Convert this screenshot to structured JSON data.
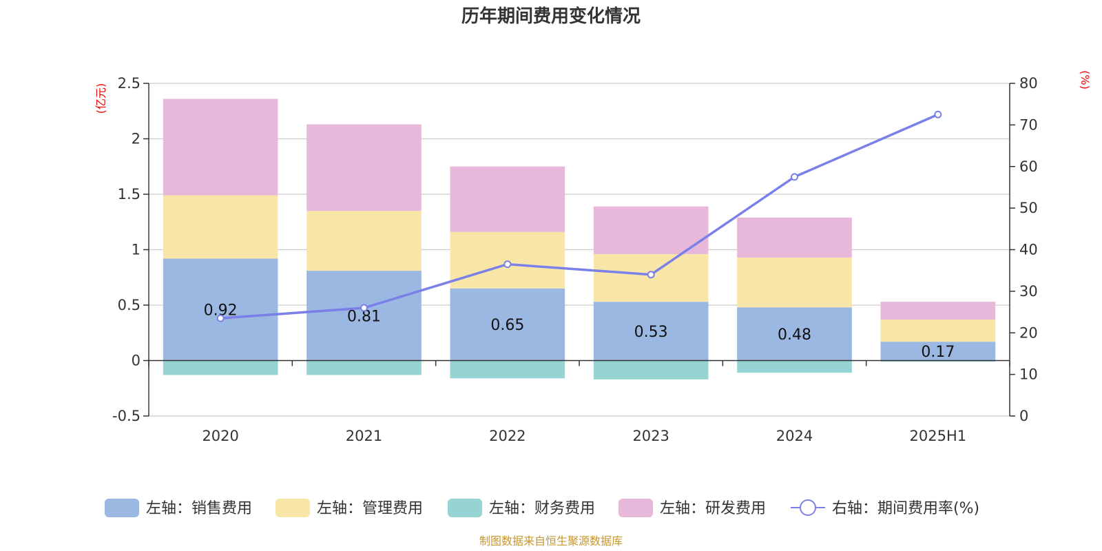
{
  "title": "历年期间费用变化情况",
  "source": "制图数据来自恒生聚源数据库",
  "chart_data": {
    "type": "bar",
    "stacked": true,
    "categories": [
      "2020",
      "2021",
      "2022",
      "2023",
      "2024",
      "2025H1"
    ],
    "series": [
      {
        "name": "左轴：销售费用",
        "axis": "left",
        "color": "#9bb8e2",
        "values": [
          0.92,
          0.81,
          0.65,
          0.53,
          0.48,
          0.17
        ],
        "labels": [
          "0.92",
          "0.81",
          "0.65",
          "0.53",
          "0.48",
          "0.17"
        ]
      },
      {
        "name": "左轴：管理费用",
        "axis": "left",
        "color": "#f8e6a8",
        "values": [
          0.57,
          0.54,
          0.51,
          0.43,
          0.45,
          0.2
        ]
      },
      {
        "name": "左轴：财务费用",
        "axis": "left",
        "color": "#96d4d3",
        "values": [
          -0.13,
          -0.13,
          -0.16,
          -0.17,
          -0.11,
          -0.01
        ]
      },
      {
        "name": "左轴：研发费用",
        "axis": "left",
        "color": "#e7b8d9",
        "values": [
          0.87,
          0.78,
          0.59,
          0.43,
          0.36,
          0.16
        ]
      },
      {
        "name": "右轴：期间费用率(%)",
        "axis": "right",
        "type": "line",
        "color": "#7b7fe8",
        "values": [
          23.5,
          26.0,
          36.5,
          34.0,
          57.5,
          72.5
        ]
      }
    ],
    "left_axis": {
      "unit": "(亿元)",
      "min": -0.5,
      "max": 2.5,
      "ticks": [
        "-0.5",
        "0",
        "0.5",
        "1",
        "1.5",
        "2",
        "2.5"
      ],
      "tick_values": [
        -0.5,
        0,
        0.5,
        1,
        1.5,
        2,
        2.5
      ]
    },
    "right_axis": {
      "unit": "(%)",
      "min": 0,
      "max": 80,
      "ticks": [
        "0",
        "10",
        "20",
        "30",
        "40",
        "50",
        "60",
        "70",
        "80"
      ],
      "tick_values": [
        0,
        10,
        20,
        30,
        40,
        50,
        60,
        70,
        80
      ]
    },
    "legend_position": "bottom",
    "grid": true
  }
}
